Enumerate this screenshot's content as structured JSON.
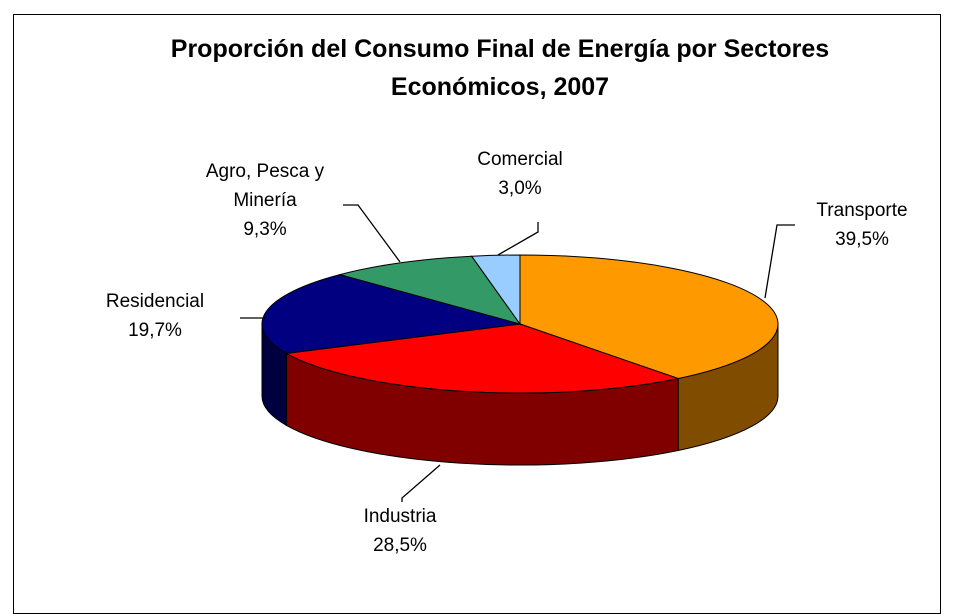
{
  "chart_data": {
    "type": "pie",
    "title": "Proporción del Consumo Final de Energía por Sectores Económicos, 2007",
    "categories": [
      "Transporte",
      "Industria",
      "Residencial",
      "Agro, Pesca y Minería",
      "Comercial"
    ],
    "values": [
      39.5,
      28.5,
      19.7,
      9.3,
      3.0
    ],
    "value_labels": [
      "39,5%",
      "28,5%",
      "19,7%",
      "9,3%",
      "3,0%"
    ],
    "colors": [
      "#ff9900",
      "#ff0000",
      "#000080",
      "#339966",
      "#99ccff"
    ]
  }
}
